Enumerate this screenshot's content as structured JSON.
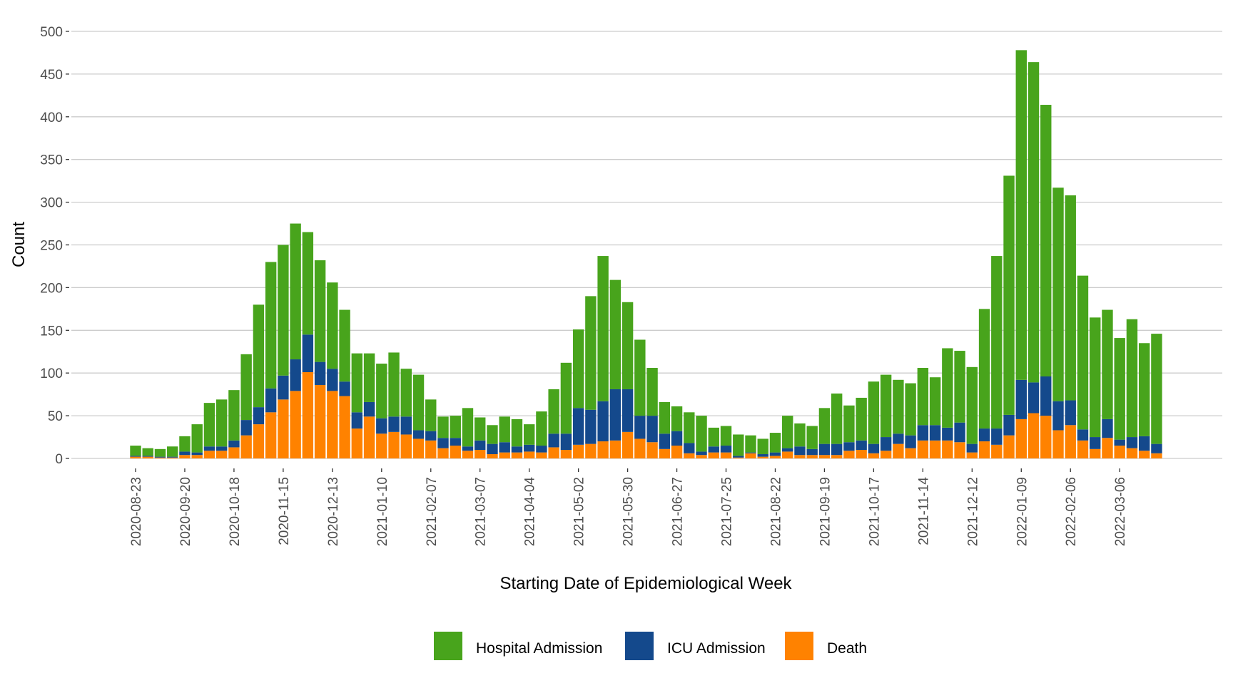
{
  "chart_data": {
    "type": "bar",
    "stacked": true,
    "x_label": "Starting Date of Epidemiological Week",
    "y_label": "Count",
    "categories": [
      "2020-08-23",
      null,
      null,
      null,
      "2020-09-20",
      null,
      null,
      null,
      "2020-10-18",
      null,
      null,
      null,
      "2020-11-15",
      null,
      null,
      null,
      "2020-12-13",
      null,
      null,
      null,
      "2021-01-10",
      null,
      null,
      null,
      "2021-02-07",
      null,
      null,
      null,
      "2021-03-07",
      null,
      null,
      null,
      "2021-04-04",
      null,
      null,
      null,
      "2021-05-02",
      null,
      null,
      null,
      "2021-05-30",
      null,
      null,
      null,
      "2021-06-27",
      null,
      null,
      null,
      "2021-07-25",
      null,
      null,
      null,
      "2021-08-22",
      null,
      null,
      null,
      "2021-09-19",
      null,
      null,
      null,
      "2021-10-17",
      null,
      null,
      null,
      "2021-11-14",
      null,
      null,
      null,
      "2021-12-12",
      null,
      null,
      null,
      "2022-01-09",
      null,
      null,
      null,
      "2022-02-06",
      null,
      null,
      null,
      "2022-03-06",
      null,
      null,
      null
    ],
    "series": [
      {
        "name": "Hospital Admission",
        "color": "#48a41c",
        "values": [
          12,
          9,
          9,
          12,
          18,
          33,
          51,
          55,
          59,
          77,
          120,
          148,
          153,
          159,
          120,
          119,
          101,
          84,
          69,
          57,
          64,
          75,
          56,
          65,
          37,
          25,
          26,
          45,
          27,
          22,
          30,
          32,
          24,
          40,
          52,
          83,
          92,
          133,
          170,
          128,
          102,
          89,
          56,
          37,
          29,
          36,
          42,
          22,
          23,
          25,
          20,
          18,
          23,
          38,
          27,
          27,
          42,
          59,
          43,
          50,
          73,
          73,
          63,
          61,
          67,
          56,
          93,
          84,
          90,
          140,
          202,
          280,
          386,
          375,
          318,
          250,
          240,
          180,
          140,
          128,
          119,
          138,
          109,
          129
        ]
      },
      {
        "name": "ICU Admission",
        "color": "#14498c",
        "values": [
          1,
          1,
          1,
          1,
          4,
          3,
          5,
          5,
          8,
          18,
          20,
          28,
          28,
          37,
          44,
          27,
          26,
          17,
          19,
          17,
          18,
          18,
          21,
          10,
          11,
          12,
          9,
          5,
          11,
          12,
          12,
          7,
          8,
          8,
          16,
          19,
          43,
          40,
          47,
          60,
          50,
          27,
          31,
          18,
          17,
          12,
          4,
          7,
          8,
          2,
          1,
          3,
          4,
          4,
          10,
          7,
          13,
          13,
          10,
          11,
          11,
          16,
          12,
          15,
          18,
          18,
          15,
          23,
          10,
          15,
          19,
          24,
          46,
          36,
          46,
          34,
          29,
          13,
          14,
          22,
          7,
          13,
          17,
          11
        ]
      },
      {
        "name": "Death",
        "color": "#ff8200",
        "values": [
          2,
          2,
          1,
          1,
          4,
          4,
          9,
          9,
          13,
          27,
          40,
          54,
          69,
          79,
          101,
          86,
          79,
          73,
          35,
          49,
          29,
          31,
          28,
          23,
          21,
          12,
          15,
          9,
          10,
          5,
          7,
          7,
          8,
          7,
          13,
          10,
          16,
          17,
          20,
          21,
          31,
          23,
          19,
          11,
          15,
          6,
          4,
          7,
          7,
          1,
          6,
          2,
          3,
          8,
          4,
          4,
          4,
          4,
          9,
          10,
          6,
          9,
          17,
          12,
          21,
          21,
          21,
          19,
          7,
          20,
          16,
          27,
          46,
          53,
          50,
          33,
          39,
          21,
          11,
          24,
          15,
          12,
          9,
          6
        ]
      }
    ],
    "ylim": [
      0,
      550
    ],
    "yticks": [
      0,
      50,
      100,
      150,
      200,
      250,
      300,
      350,
      400,
      450,
      500
    ],
    "grid": true,
    "legend": "bottom"
  }
}
